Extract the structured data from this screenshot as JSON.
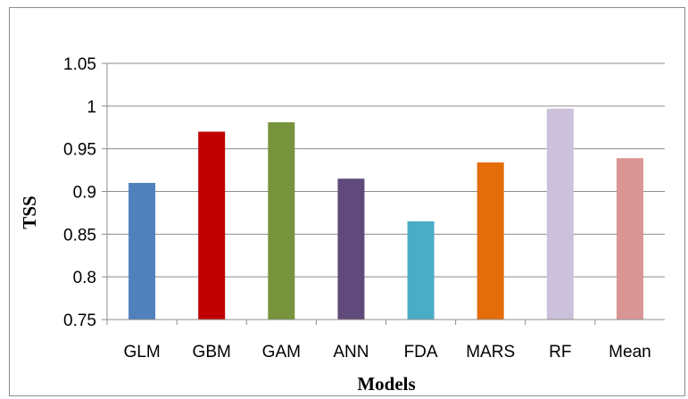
{
  "chart_data": {
    "type": "bar",
    "categories": [
      "GLM",
      "GBM",
      "GAM",
      "ANN",
      "FDA",
      "MARS",
      "RF",
      "Mean"
    ],
    "values": [
      0.91,
      0.97,
      0.981,
      0.915,
      0.865,
      0.934,
      0.997,
      0.939
    ],
    "colors": [
      "#4f81bd",
      "#c00000",
      "#77933c",
      "#604a7b",
      "#4bacc6",
      "#e46c0a",
      "#ccc1da",
      "#d99694"
    ],
    "xlabel": "Models",
    "ylabel": "TSS",
    "ylim": [
      0.75,
      1.05
    ],
    "yticks": [
      0.75,
      0.8,
      0.85,
      0.9,
      0.95,
      1,
      1.05
    ],
    "ytick_labels": [
      "0.75",
      "0.8",
      "0.85",
      "0.9",
      "0.95",
      "1",
      "1.05"
    ],
    "grid": true,
    "legend": "none"
  }
}
